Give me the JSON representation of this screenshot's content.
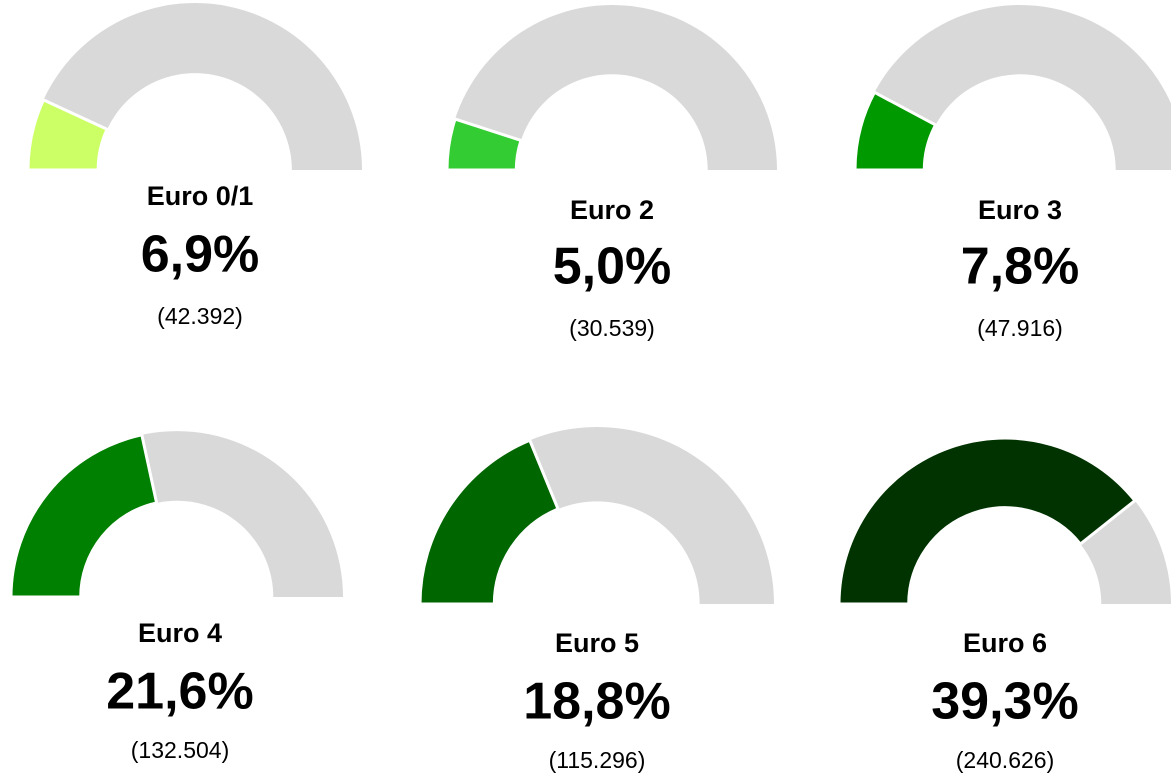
{
  "chart_data": [
    {
      "type": "gauge",
      "title": "Euro 0/1",
      "values": [
        6.9
      ],
      "value_labels": [
        "6,9%"
      ],
      "subtitle": "(42.392)",
      "ylim": [
        0,
        50
      ],
      "color": "#ccff66",
      "track_color": "#d9d9d9"
    },
    {
      "type": "gauge",
      "title": "Euro 2",
      "values": [
        5.0
      ],
      "value_labels": [
        "5,0%"
      ],
      "subtitle": "(30.539)",
      "ylim": [
        0,
        50
      ],
      "color": "#33cc33",
      "track_color": "#d9d9d9"
    },
    {
      "type": "gauge",
      "title": "Euro 3",
      "values": [
        7.8
      ],
      "value_labels": [
        "7,8%"
      ],
      "subtitle": "(47.916)",
      "ylim": [
        0,
        50
      ],
      "color": "#009900",
      "track_color": "#d9d9d9"
    },
    {
      "type": "gauge",
      "title": "Euro 4",
      "values": [
        21.6
      ],
      "value_labels": [
        "21,6%"
      ],
      "subtitle": "(132.504)",
      "ylim": [
        0,
        50
      ],
      "color": "#008000",
      "track_color": "#d9d9d9"
    },
    {
      "type": "gauge",
      "title": "Euro 5",
      "values": [
        18.8
      ],
      "value_labels": [
        "18,8%"
      ],
      "subtitle": "(115.296)",
      "ylim": [
        0,
        50
      ],
      "color": "#006600",
      "track_color": "#d9d9d9"
    },
    {
      "type": "gauge",
      "title": "Euro 6",
      "values": [
        39.3
      ],
      "value_labels": [
        "39,3%"
      ],
      "subtitle": "(240.626)",
      "ylim": [
        0,
        50
      ],
      "color": "#003300",
      "track_color": "#d9d9d9"
    }
  ]
}
